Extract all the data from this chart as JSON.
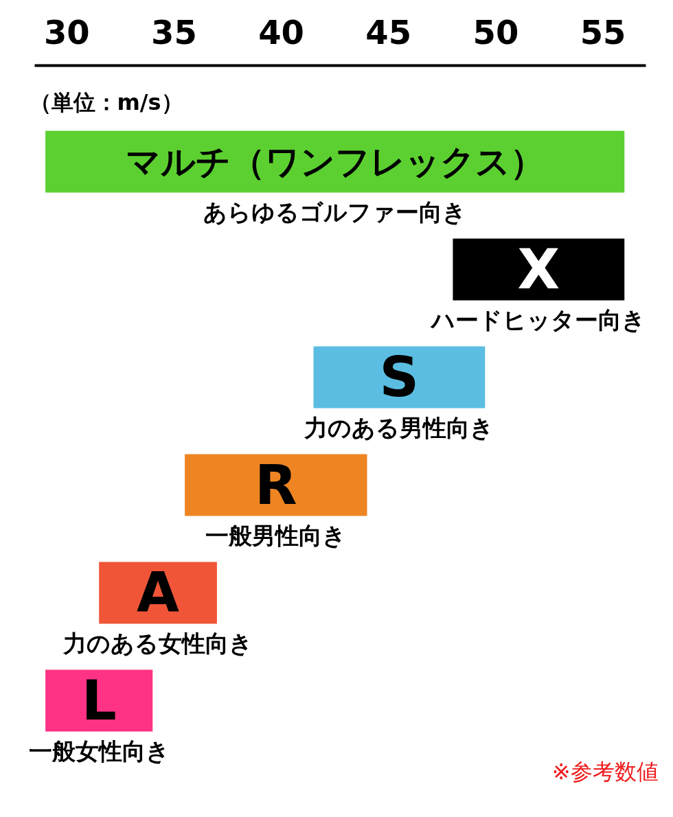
{
  "chart_data": {
    "type": "bar",
    "orientation": "horizontal",
    "xlabel": "（単位：m/s）",
    "categories": [
      "マルチ（ワンフレックス）",
      "X",
      "S",
      "R",
      "A",
      "L"
    ],
    "base": [
      29,
      48,
      41.5,
      35.5,
      31.5,
      29
    ],
    "values": [
      27,
      8,
      8,
      8.5,
      5.5,
      5
    ],
    "colors": [
      "#5cd030",
      "#000000",
      "#5bbde1",
      "#ee8522",
      "#f05538",
      "#ff3385"
    ],
    "xlim": [
      28.5,
      57
    ],
    "xticks": [
      30,
      35,
      40,
      45,
      50,
      55
    ],
    "tick_labels": "x",
    "annotations": [
      "あらゆるゴルファー向き",
      "ハードヒッター向き",
      "力のある男性向き",
      "一般男性向き",
      "力のある女性向き",
      "一般女性向き",
      "※参考数値"
    ]
  }
}
